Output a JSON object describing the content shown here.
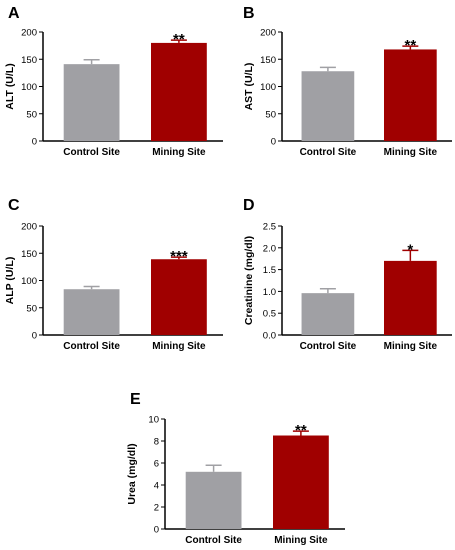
{
  "colors": {
    "control": "#a0a0a4",
    "mining": "#a00000",
    "axis": "#000000"
  },
  "chart_data": [
    {
      "panel": "A",
      "type": "bar",
      "categories": [
        "Control Site",
        "Mining Site"
      ],
      "values": [
        141,
        180
      ],
      "errors": [
        8,
        5
      ],
      "ylabel": "ALT (U/L)",
      "ylim": [
        0,
        200
      ],
      "ticks": [
        "0",
        "50",
        "100",
        "150",
        "200"
      ],
      "significance": [
        "",
        "**"
      ]
    },
    {
      "panel": "B",
      "type": "bar",
      "categories": [
        "Control Site",
        "Mining Site"
      ],
      "values": [
        128,
        168
      ],
      "errors": [
        7,
        6
      ],
      "ylabel": "AST (U/L)",
      "ylim": [
        0,
        200
      ],
      "ticks": [
        "0",
        "50",
        "100",
        "150",
        "200"
      ],
      "significance": [
        "",
        "**"
      ]
    },
    {
      "panel": "C",
      "type": "bar",
      "categories": [
        "Control Site",
        "Mining Site"
      ],
      "values": [
        84,
        139
      ],
      "errors": [
        5,
        4
      ],
      "ylabel": "ALP (U/L)",
      "ylim": [
        0,
        200
      ],
      "ticks": [
        "0",
        "50",
        "100",
        "150",
        "200"
      ],
      "significance": [
        "",
        "***"
      ]
    },
    {
      "panel": "D",
      "type": "bar",
      "categories": [
        "Control Site",
        "Mining Site"
      ],
      "values": [
        0.96,
        1.7
      ],
      "errors": [
        0.1,
        0.24
      ],
      "ylabel": "Creatinine (mg/dl)",
      "ylim": [
        0,
        2.5
      ],
      "ticks": [
        "0.0",
        "0.5",
        "1.0",
        "1.5",
        "2.0",
        "2.5"
      ],
      "significance": [
        "",
        "*"
      ]
    },
    {
      "panel": "E",
      "type": "bar",
      "categories": [
        "Control Site",
        "Mining Site"
      ],
      "values": [
        5.2,
        8.5
      ],
      "errors": [
        0.6,
        0.4
      ],
      "ylabel": "Urea (mg/dl)",
      "ylim": [
        0,
        10
      ],
      "ticks": [
        "0",
        "2",
        "4",
        "6",
        "8",
        "10"
      ],
      "significance": [
        "",
        "**"
      ]
    }
  ]
}
